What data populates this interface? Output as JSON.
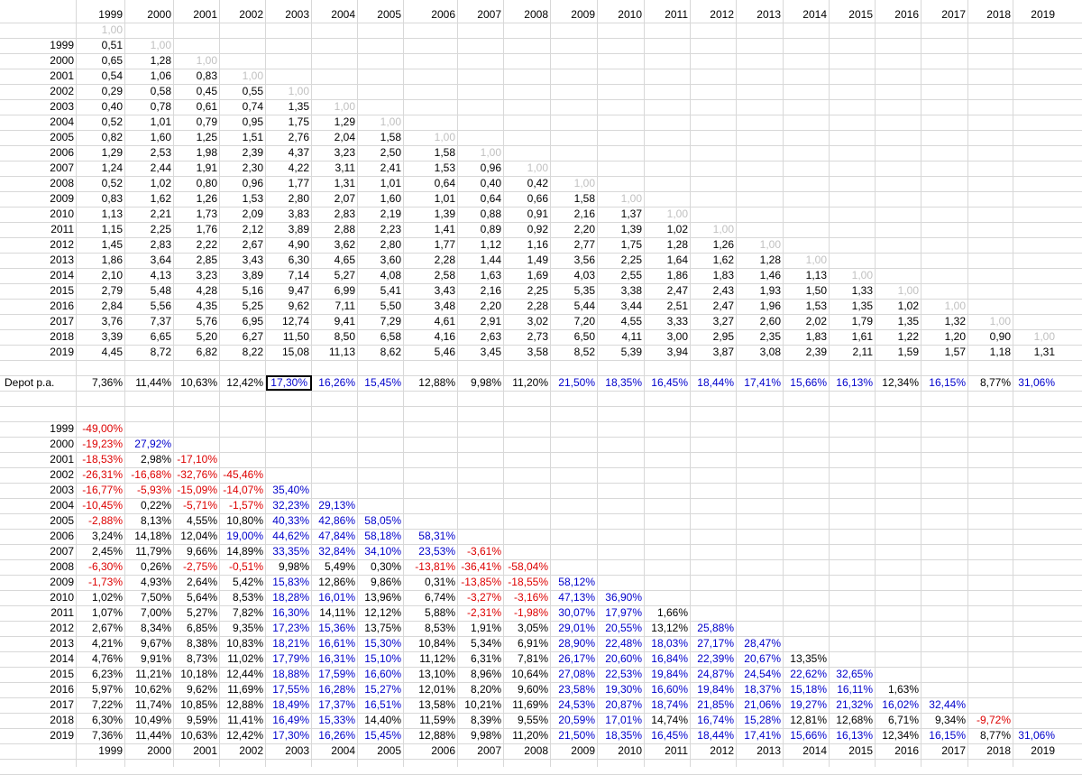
{
  "columns": [
    "1999",
    "2000",
    "2001",
    "2002",
    "2003",
    "2004",
    "2005",
    "2006",
    "2007",
    "2008",
    "2009",
    "2010",
    "2011",
    "2012",
    "2013",
    "2014",
    "2015",
    "2016",
    "2017",
    "2018",
    "2019"
  ],
  "top_first_cell": "1,00",
  "factor_table": [
    [
      "0,51",
      "1,00"
    ],
    [
      "0,65",
      "1,28",
      "1,00"
    ],
    [
      "0,54",
      "1,06",
      "0,83",
      "1,00"
    ],
    [
      "0,29",
      "0,58",
      "0,45",
      "0,55",
      "1,00"
    ],
    [
      "0,40",
      "0,78",
      "0,61",
      "0,74",
      "1,35",
      "1,00"
    ],
    [
      "0,52",
      "1,01",
      "0,79",
      "0,95",
      "1,75",
      "1,29",
      "1,00"
    ],
    [
      "0,82",
      "1,60",
      "1,25",
      "1,51",
      "2,76",
      "2,04",
      "1,58",
      "1,00"
    ],
    [
      "1,29",
      "2,53",
      "1,98",
      "2,39",
      "4,37",
      "3,23",
      "2,50",
      "1,58",
      "1,00"
    ],
    [
      "1,24",
      "2,44",
      "1,91",
      "2,30",
      "4,22",
      "3,11",
      "2,41",
      "1,53",
      "0,96",
      "1,00"
    ],
    [
      "0,52",
      "1,02",
      "0,80",
      "0,96",
      "1,77",
      "1,31",
      "1,01",
      "0,64",
      "0,40",
      "0,42",
      "1,00"
    ],
    [
      "0,83",
      "1,62",
      "1,26",
      "1,53",
      "2,80",
      "2,07",
      "1,60",
      "1,01",
      "0,64",
      "0,66",
      "1,58",
      "1,00"
    ],
    [
      "1,13",
      "2,21",
      "1,73",
      "2,09",
      "3,83",
      "2,83",
      "2,19",
      "1,39",
      "0,88",
      "0,91",
      "2,16",
      "1,37",
      "1,00"
    ],
    [
      "1,15",
      "2,25",
      "1,76",
      "2,12",
      "3,89",
      "2,88",
      "2,23",
      "1,41",
      "0,89",
      "0,92",
      "2,20",
      "1,39",
      "1,02",
      "1,00"
    ],
    [
      "1,45",
      "2,83",
      "2,22",
      "2,67",
      "4,90",
      "3,62",
      "2,80",
      "1,77",
      "1,12",
      "1,16",
      "2,77",
      "1,75",
      "1,28",
      "1,26",
      "1,00"
    ],
    [
      "1,86",
      "3,64",
      "2,85",
      "3,43",
      "6,30",
      "4,65",
      "3,60",
      "2,28",
      "1,44",
      "1,49",
      "3,56",
      "2,25",
      "1,64",
      "1,62",
      "1,28",
      "1,00"
    ],
    [
      "2,10",
      "4,13",
      "3,23",
      "3,89",
      "7,14",
      "5,27",
      "4,08",
      "2,58",
      "1,63",
      "1,69",
      "4,03",
      "2,55",
      "1,86",
      "1,83",
      "1,46",
      "1,13",
      "1,00"
    ],
    [
      "2,79",
      "5,48",
      "4,28",
      "5,16",
      "9,47",
      "6,99",
      "5,41",
      "3,43",
      "2,16",
      "2,25",
      "5,35",
      "3,38",
      "2,47",
      "2,43",
      "1,93",
      "1,50",
      "1,33",
      "1,00"
    ],
    [
      "2,84",
      "5,56",
      "4,35",
      "5,25",
      "9,62",
      "7,11",
      "5,50",
      "3,48",
      "2,20",
      "2,28",
      "5,44",
      "3,44",
      "2,51",
      "2,47",
      "1,96",
      "1,53",
      "1,35",
      "1,02",
      "1,00"
    ],
    [
      "3,76",
      "7,37",
      "5,76",
      "6,95",
      "12,74",
      "9,41",
      "7,29",
      "4,61",
      "2,91",
      "3,02",
      "7,20",
      "4,55",
      "3,33",
      "3,27",
      "2,60",
      "2,02",
      "1,79",
      "1,35",
      "1,32",
      "1,00"
    ],
    [
      "3,39",
      "6,65",
      "5,20",
      "6,27",
      "11,50",
      "8,50",
      "6,58",
      "4,16",
      "2,63",
      "2,73",
      "6,50",
      "4,11",
      "3,00",
      "2,95",
      "2,35",
      "1,83",
      "1,61",
      "1,22",
      "1,20",
      "0,90",
      "1,00"
    ],
    [
      "4,45",
      "8,72",
      "6,82",
      "8,22",
      "15,08",
      "11,13",
      "8,62",
      "5,46",
      "3,45",
      "3,58",
      "8,52",
      "5,39",
      "3,94",
      "3,87",
      "3,08",
      "2,39",
      "2,11",
      "1,59",
      "1,57",
      "1,18",
      "1,31"
    ]
  ],
  "depot": {
    "label": "Depot p.a.",
    "values": [
      "7,36%",
      "11,44%",
      "10,63%",
      "12,42%",
      "17,30%",
      "16,26%",
      "15,45%",
      "12,88%",
      "9,98%",
      "11,20%",
      "21,50%",
      "18,35%",
      "16,45%",
      "18,44%",
      "17,41%",
      "15,66%",
      "16,13%",
      "12,34%",
      "16,15%",
      "8,77%",
      "31,06%"
    ],
    "selected_index": 4
  },
  "return_table": [
    [
      "-49,00%"
    ],
    [
      "-19,23%",
      "27,92%"
    ],
    [
      "-18,53%",
      "2,98%",
      "-17,10%"
    ],
    [
      "-26,31%",
      "-16,68%",
      "-32,76%",
      "-45,46%"
    ],
    [
      "-16,77%",
      "-5,93%",
      "-15,09%",
      "-14,07%",
      "35,40%"
    ],
    [
      "-10,45%",
      "0,22%",
      "-5,71%",
      "-1,57%",
      "32,23%",
      "29,13%"
    ],
    [
      "-2,88%",
      "8,13%",
      "4,55%",
      "10,80%",
      "40,33%",
      "42,86%",
      "58,05%"
    ],
    [
      "3,24%",
      "14,18%",
      "12,04%",
      "19,00%",
      "44,62%",
      "47,84%",
      "58,18%",
      "58,31%"
    ],
    [
      "2,45%",
      "11,79%",
      "9,66%",
      "14,89%",
      "33,35%",
      "32,84%",
      "34,10%",
      "23,53%",
      "-3,61%"
    ],
    [
      "-6,30%",
      "0,26%",
      "-2,75%",
      "-0,51%",
      "9,98%",
      "5,49%",
      "0,30%",
      "-13,81%",
      "-36,41%",
      "-58,04%"
    ],
    [
      "-1,73%",
      "4,93%",
      "2,64%",
      "5,42%",
      "15,83%",
      "12,86%",
      "9,86%",
      "0,31%",
      "-13,85%",
      "-18,55%",
      "58,12%"
    ],
    [
      "1,02%",
      "7,50%",
      "5,64%",
      "8,53%",
      "18,28%",
      "16,01%",
      "13,96%",
      "6,74%",
      "-3,27%",
      "-3,16%",
      "47,13%",
      "36,90%"
    ],
    [
      "1,07%",
      "7,00%",
      "5,27%",
      "7,82%",
      "16,30%",
      "14,11%",
      "12,12%",
      "5,88%",
      "-2,31%",
      "-1,98%",
      "30,07%",
      "17,97%",
      "1,66%"
    ],
    [
      "2,67%",
      "8,34%",
      "6,85%",
      "9,35%",
      "17,23%",
      "15,36%",
      "13,75%",
      "8,53%",
      "1,91%",
      "3,05%",
      "29,01%",
      "20,55%",
      "13,12%",
      "25,88%"
    ],
    [
      "4,21%",
      "9,67%",
      "8,38%",
      "10,83%",
      "18,21%",
      "16,61%",
      "15,30%",
      "10,84%",
      "5,34%",
      "6,91%",
      "28,90%",
      "22,48%",
      "18,03%",
      "27,17%",
      "28,47%"
    ],
    [
      "4,76%",
      "9,91%",
      "8,73%",
      "11,02%",
      "17,79%",
      "16,31%",
      "15,10%",
      "11,12%",
      "6,31%",
      "7,81%",
      "26,17%",
      "20,60%",
      "16,84%",
      "22,39%",
      "20,67%",
      "13,35%"
    ],
    [
      "6,23%",
      "11,21%",
      "10,18%",
      "12,44%",
      "18,88%",
      "17,59%",
      "16,60%",
      "13,10%",
      "8,96%",
      "10,64%",
      "27,08%",
      "22,53%",
      "19,84%",
      "24,87%",
      "24,54%",
      "22,62%",
      "32,65%"
    ],
    [
      "5,97%",
      "10,62%",
      "9,62%",
      "11,69%",
      "17,55%",
      "16,28%",
      "15,27%",
      "12,01%",
      "8,20%",
      "9,60%",
      "23,58%",
      "19,30%",
      "16,60%",
      "19,84%",
      "18,37%",
      "15,18%",
      "16,11%",
      "1,63%"
    ],
    [
      "7,22%",
      "11,74%",
      "10,85%",
      "12,88%",
      "18,49%",
      "17,37%",
      "16,51%",
      "13,58%",
      "10,21%",
      "11,69%",
      "24,53%",
      "20,87%",
      "18,74%",
      "21,85%",
      "21,06%",
      "19,27%",
      "21,32%",
      "16,02%",
      "32,44%"
    ],
    [
      "6,30%",
      "10,49%",
      "9,59%",
      "11,41%",
      "16,49%",
      "15,33%",
      "14,40%",
      "11,59%",
      "8,39%",
      "9,55%",
      "20,59%",
      "17,01%",
      "14,74%",
      "16,74%",
      "15,28%",
      "12,81%",
      "12,68%",
      "6,71%",
      "9,34%",
      "-9,72%"
    ],
    [
      "7,36%",
      "11,44%",
      "10,63%",
      "12,42%",
      "17,30%",
      "16,26%",
      "15,45%",
      "12,88%",
      "9,98%",
      "11,20%",
      "21,50%",
      "18,35%",
      "16,45%",
      "18,44%",
      "17,41%",
      "15,66%",
      "16,13%",
      "12,34%",
      "16,15%",
      "8,77%",
      "31,06%"
    ]
  ],
  "colors": {
    "positive": "#0000cc",
    "negative": "#dd0000",
    "identity": "#c0c0c0",
    "grid": "#d8d8d8"
  }
}
